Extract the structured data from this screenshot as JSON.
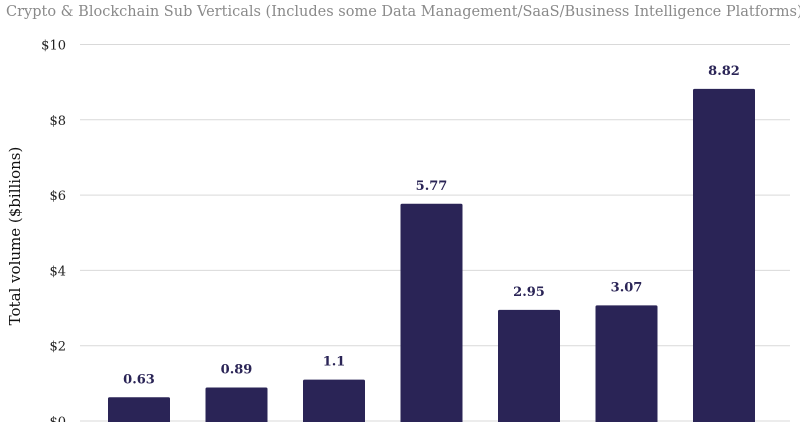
{
  "chart_data": {
    "type": "bar",
    "title": "Crypto & Blockchain Sub Verticals (Includes some Data Management/SaaS/Business Intelligence Platforms)",
    "xlabel": "",
    "ylabel": "Total volume ($billions)",
    "categories": [
      "",
      "",
      "",
      "",
      "",
      "",
      ""
    ],
    "values": [
      0.63,
      0.89,
      1.1,
      5.77,
      2.95,
      3.07,
      8.82
    ],
    "data_labels": [
      "0.63",
      "0.89",
      "1.1",
      "5.77",
      "2.95",
      "3.07",
      "8.82"
    ],
    "ylim": [
      0,
      10
    ],
    "yticks": [
      0,
      2,
      4,
      6,
      8,
      10
    ],
    "ytick_labels": [
      "$0",
      "$2",
      "$4",
      "$6",
      "$8",
      "$10"
    ],
    "grid": true,
    "legend": "none",
    "bar_color": "#2a2456",
    "label_color": "#2a2456"
  }
}
